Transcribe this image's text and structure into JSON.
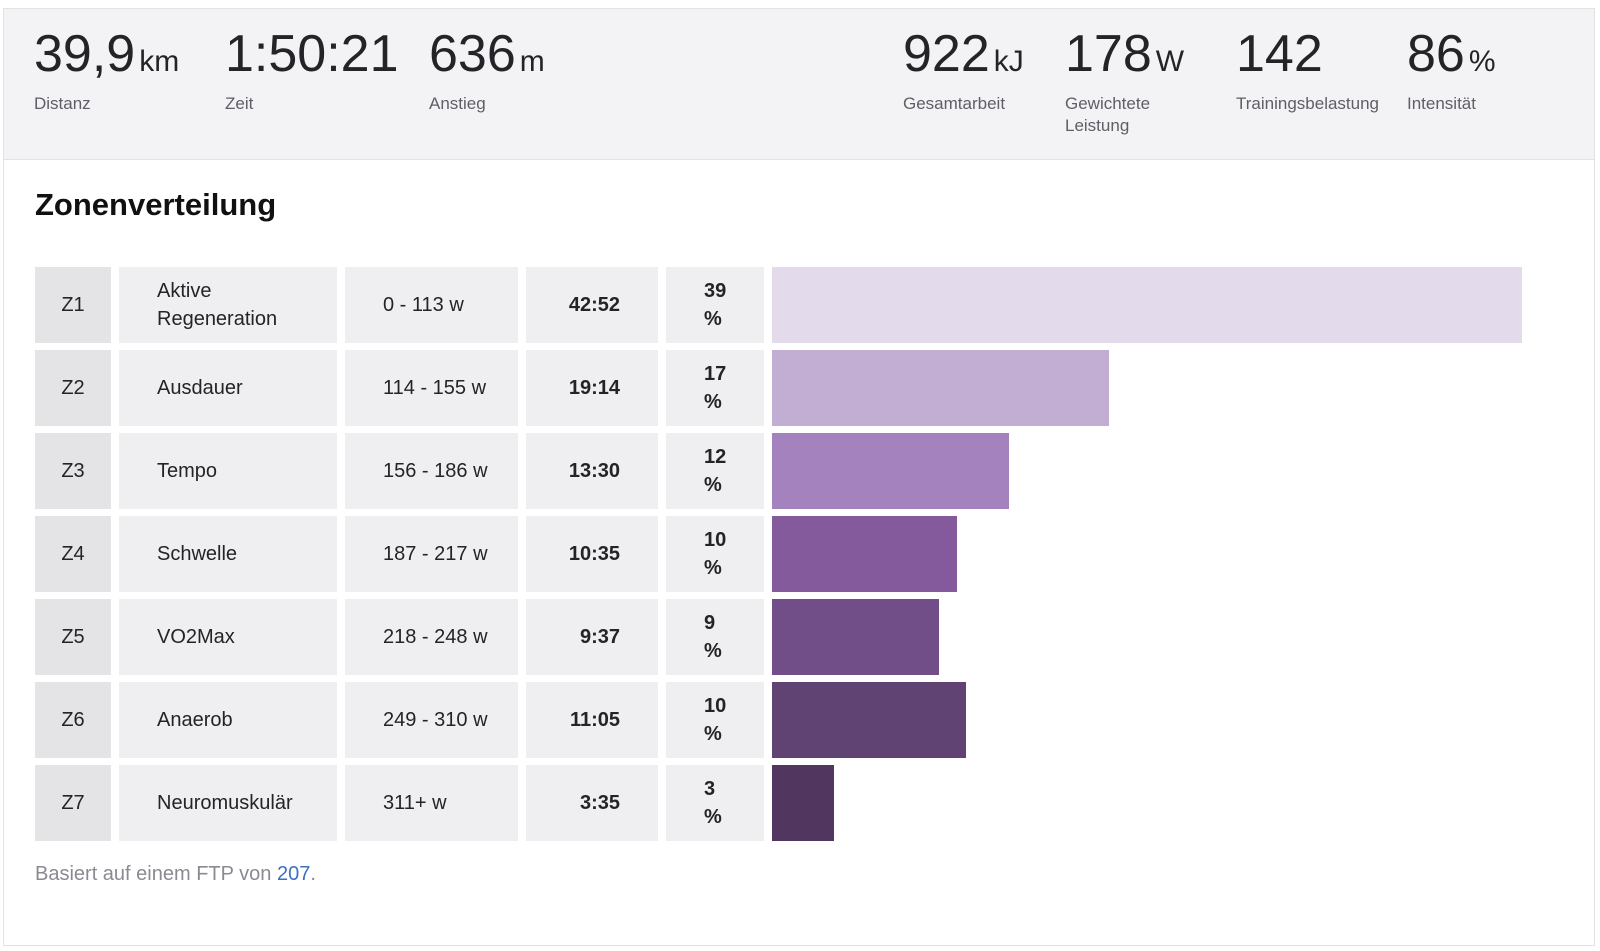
{
  "stats_left": [
    {
      "value": "39,9",
      "unit": "km",
      "label": "Distanz"
    },
    {
      "value": "1:50:21",
      "unit": "",
      "label": "Zeit"
    },
    {
      "value": "636",
      "unit": "m",
      "label": "Anstieg"
    }
  ],
  "stats_right": [
    {
      "value": "922",
      "unit": "kJ",
      "label": "Gesamtarbeit"
    },
    {
      "value": "178",
      "unit": "W",
      "label": "Gewichtete Leistung"
    },
    {
      "value": "142",
      "unit": "",
      "label": "Trainingsbelastung"
    },
    {
      "value": "86",
      "unit": "%",
      "label": "Intensität"
    }
  ],
  "section_title": "Zonenverteilung",
  "zones": [
    {
      "zone": "Z1",
      "name": "Aktive Regeneration",
      "range": "0 - 113 w",
      "time": "42:52",
      "percent": "39 %",
      "share": 0.39,
      "color": "#e3dbeb"
    },
    {
      "zone": "Z2",
      "name": "Ausdauer",
      "range": "114 - 155 w",
      "time": "19:14",
      "percent": "17 %",
      "share": 0.175,
      "color": "#c2aed3"
    },
    {
      "zone": "Z3",
      "name": "Tempo",
      "range": "156 - 186 w",
      "time": "13:30",
      "percent": "12 %",
      "share": 0.123,
      "color": "#a382bd"
    },
    {
      "zone": "Z4",
      "name": "Schwelle",
      "range": "187 - 217 w",
      "time": "10:35",
      "percent": "10 %",
      "share": 0.096,
      "color": "#845a9c"
    },
    {
      "zone": "Z5",
      "name": "VO2Max",
      "range": "218 - 248 w",
      "time": "9:37",
      "percent": "9 %",
      "share": 0.087,
      "color": "#724e89"
    },
    {
      "zone": "Z6",
      "name": "Anaerob",
      "range": "249 - 310 w",
      "time": "11:05",
      "percent": "10 %",
      "share": 0.101,
      "color": "#614373"
    },
    {
      "zone": "Z7",
      "name": "Neuromuskulär",
      "range": "311+ w",
      "time": "3:35",
      "percent": "3 %",
      "share": 0.032,
      "color": "#51375f"
    }
  ],
  "footer": {
    "prefix": "Basiert auf einem FTP von ",
    "ftp_link": "207",
    "suffix": "."
  }
}
